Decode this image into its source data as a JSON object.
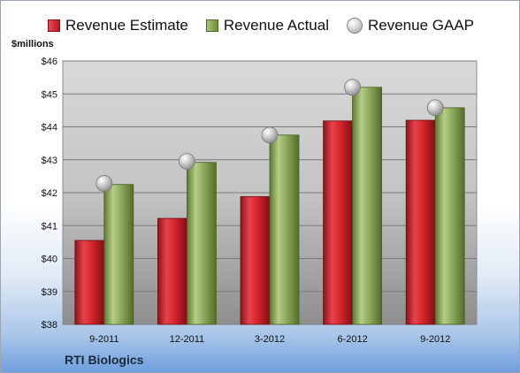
{
  "chart_data": {
    "type": "bar",
    "ylabel": "$millions",
    "ylim": [
      38,
      46
    ],
    "yticks": [
      "$38",
      "$39",
      "$40",
      "$41",
      "$42",
      "$43",
      "$44",
      "$45",
      "$46"
    ],
    "ytick_values": [
      38,
      39,
      40,
      41,
      42,
      43,
      44,
      45,
      46
    ],
    "categories": [
      "9-2011",
      "12-2011",
      "3-2012",
      "6-2012",
      "9-2012"
    ],
    "series": [
      {
        "name": "Revenue Estimate",
        "kind": "bar",
        "color": "#d2232a",
        "values": [
          40.55,
          41.22,
          41.88,
          44.18,
          44.2
        ]
      },
      {
        "name": "Revenue Actual",
        "kind": "bar",
        "color": "#8aa65a",
        "values": [
          42.25,
          42.92,
          43.75,
          45.2,
          44.58
        ]
      },
      {
        "name": "Revenue GAAP",
        "kind": "marker",
        "color": "#bdbdbd",
        "values": [
          42.28,
          42.95,
          43.75,
          45.2,
          44.58
        ]
      }
    ],
    "grid": true,
    "legend_position": "top"
  },
  "company_name": "RTI Biologics"
}
